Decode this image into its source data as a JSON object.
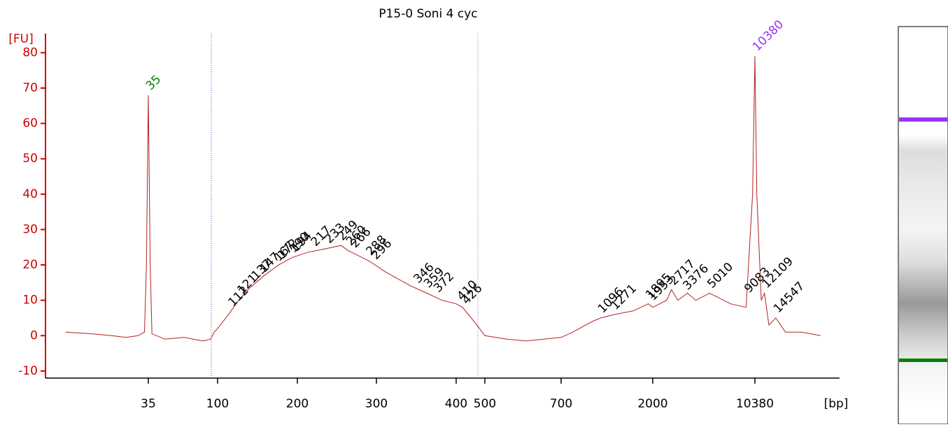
{
  "chart_data": {
    "type": "line",
    "title": "P15-0 Soni 4 cyc",
    "y_label": "[FU]",
    "x_label": "[bp]",
    "color": "#b22222",
    "x": [
      10,
      15,
      20,
      25,
      30,
      33,
      34,
      35,
      36,
      37,
      45,
      60,
      80,
      90,
      95,
      100,
      110,
      120,
      130,
      150,
      170,
      190,
      210,
      230,
      250,
      260,
      270,
      290,
      310,
      340,
      360,
      380,
      400,
      420,
      450,
      480,
      500,
      550,
      600,
      700,
      800,
      1000,
      1100,
      1300,
      1600,
      1900,
      2000,
      2500,
      2700,
      3000,
      3500,
      4000,
      5000,
      7000,
      9000,
      10000,
      10380,
      10700,
      11500,
      12109,
      13000,
      14547,
      17000,
      22000,
      30000
    ],
    "values": [
      1,
      0.5,
      0,
      -0.5,
      0,
      1,
      20,
      68,
      20,
      0.5,
      -1,
      -0.5,
      -1.5,
      -1,
      1,
      2,
      6,
      10,
      13,
      17,
      20,
      22,
      23.5,
      24.5,
      25.5,
      24,
      23,
      21,
      18,
      14,
      12,
      10,
      9,
      8,
      5,
      2,
      0,
      -1,
      -1.5,
      -0.5,
      1,
      4,
      5,
      6,
      7,
      9,
      8,
      10,
      13,
      10,
      12,
      10,
      12,
      9,
      8,
      40,
      79,
      40,
      10,
      12,
      3,
      5,
      1,
      1,
      0
    ],
    "peaks": [
      112,
      121,
      137,
      147,
      167,
      172,
      190,
      194,
      217,
      233,
      249,
      260,
      266,
      288,
      296,
      346,
      359,
      372,
      410,
      426,
      1096,
      1271,
      1895,
      1953,
      2717,
      3376,
      5010,
      9083,
      12109,
      14547
    ],
    "marker_peaks": [
      {
        "value": 35,
        "color": "#008000"
      },
      {
        "value": 10380,
        "color": "#9933ff"
      }
    ],
    "xlim": [
      7.5,
      35000
    ],
    "xticks": [
      35,
      100,
      200,
      300,
      400,
      500,
      700,
      2000,
      10380
    ],
    "ylim": [
      -12,
      87
    ],
    "yticks": [
      -10,
      0,
      10,
      20,
      30,
      40,
      50,
      60,
      70,
      80
    ]
  }
}
